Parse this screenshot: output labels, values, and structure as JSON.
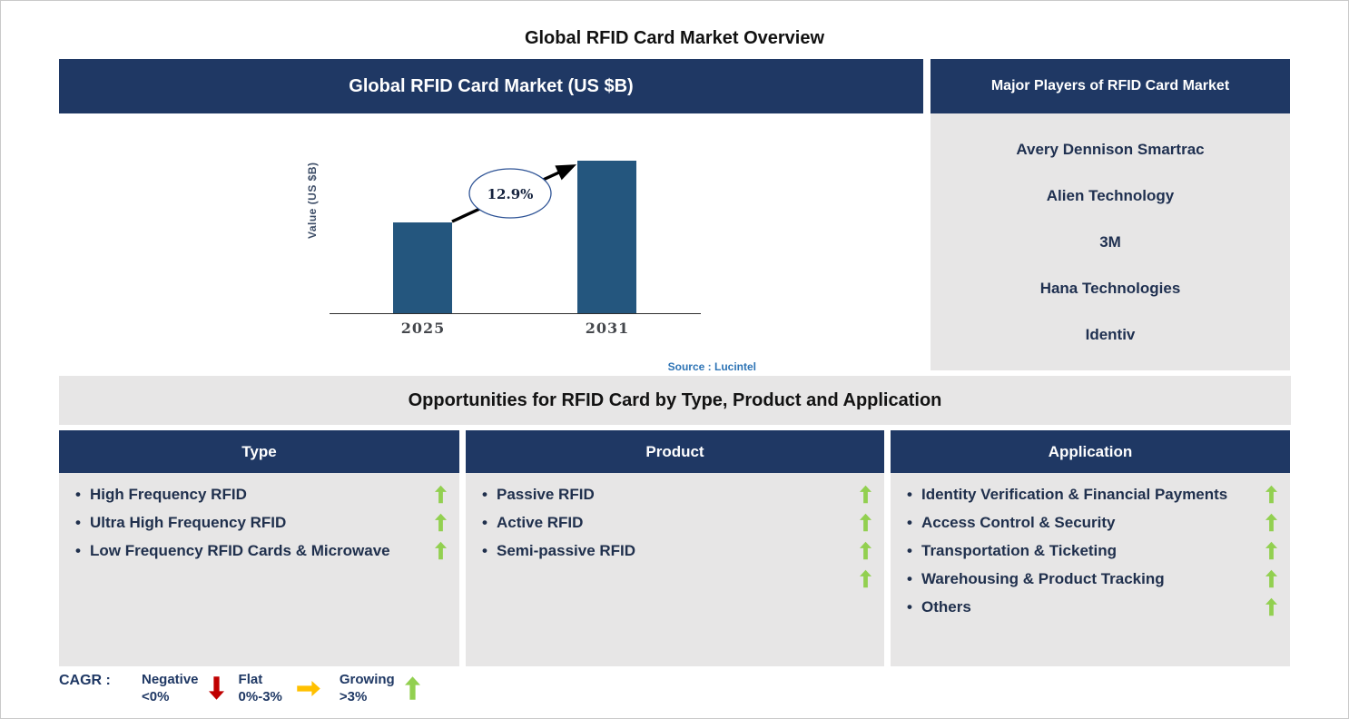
{
  "page": {
    "title": "Global RFID Card Market Overview"
  },
  "market_chart": {
    "panel_title": "Global RFID Card Market (US $B)",
    "cagr_label": "12.9%",
    "source": "Source : Lucintel"
  },
  "chart_data": {
    "type": "bar",
    "title": "Global RFID Card Market (US $B)",
    "categories": [
      "2025",
      "2031"
    ],
    "values_relative": [
      0.6,
      1.0
    ],
    "values_note": "axis unlabeled; 2031 bar ~1.66x the 2025 bar",
    "annotation": "12.9%",
    "xlabel": "",
    "ylabel": "Value (US $B)",
    "grid": false,
    "legend": false
  },
  "major_players": {
    "title": "Major Players of RFID Card Market",
    "players": [
      "Avery Dennison Smartrac",
      "Alien Technology",
      "3M",
      "Hana Technologies",
      "Identiv"
    ]
  },
  "opportunities": {
    "title": "Opportunities for RFID Card by Type, Product and Application",
    "columns": [
      {
        "header": "Type",
        "items": [
          {
            "label": "High Frequency RFID",
            "trend": "growing"
          },
          {
            "label": "Ultra High Frequency RFID",
            "trend": "growing"
          },
          {
            "label": "Low Frequency RFID Cards & Microwave",
            "trend": "growing"
          }
        ],
        "extra_trend_arrows": 0
      },
      {
        "header": "Product",
        "items": [
          {
            "label": "Passive RFID",
            "trend": "growing"
          },
          {
            "label": "Active RFID",
            "trend": "growing"
          },
          {
            "label": "Semi-passive RFID",
            "trend": "growing"
          }
        ],
        "extra_trend_arrows": 1
      },
      {
        "header": "Application",
        "items": [
          {
            "label": "Identity Verification & Financial Payments",
            "trend": "growing"
          },
          {
            "label": "Access Control & Security",
            "trend": "growing"
          },
          {
            "label": "Transportation & Ticketing",
            "trend": "growing"
          },
          {
            "label": "Warehousing & Product Tracking",
            "trend": "growing"
          },
          {
            "label": "Others",
            "trend": "growing"
          }
        ],
        "extra_trend_arrows": 0
      }
    ]
  },
  "legend": {
    "label": "CAGR :",
    "entries": [
      {
        "name": "Negative",
        "range": "<0%",
        "direction": "down",
        "color": "#C00000"
      },
      {
        "name": "Flat",
        "range": "0%-3%",
        "direction": "right",
        "color": "#FFC000"
      },
      {
        "name": "Growing",
        "range": ">3%",
        "direction": "up",
        "color": "#92D050"
      }
    ]
  },
  "colors": {
    "navy_header": "#1F3864",
    "panel_gray": "#E7E6E6",
    "bar_blue": "#24567E",
    "growing_green": "#92D050",
    "negative_red": "#C00000",
    "flat_amber": "#FFC000",
    "source_blue": "#2E74B5",
    "item_text": "#20304d"
  }
}
